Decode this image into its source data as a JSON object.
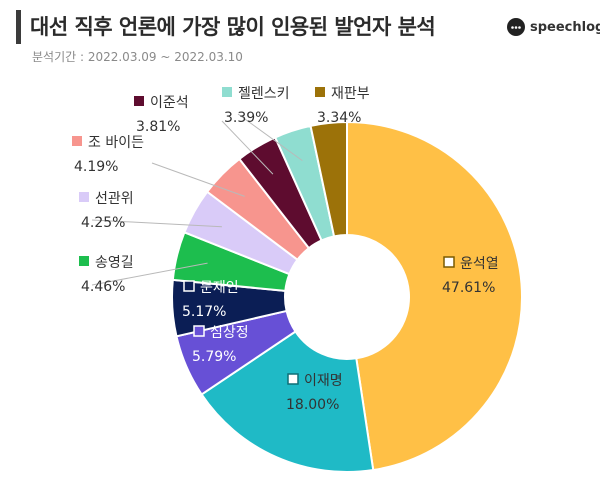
{
  "header": {
    "title": "대선 직후 언론에 가장 많이 인용된 발언자 분석",
    "period": "분석기간 : 2022.03.09 ~ 2022.03.10",
    "brand": "speechlog"
  },
  "chart_data": {
    "type": "pie",
    "donut": true,
    "slices": [
      {
        "name": "윤석열",
        "value": 47.61,
        "label": "47.61%",
        "color": "#FFC046"
      },
      {
        "name": "이재명",
        "value": 18.0,
        "label": "18.00%",
        "color": "#1FBAC6"
      },
      {
        "name": "심상정",
        "value": 5.79,
        "label": "5.79%",
        "color": "#6750D6"
      },
      {
        "name": "문재인",
        "value": 5.17,
        "label": "5.17%",
        "color": "#0B1E55"
      },
      {
        "name": "송영길",
        "value": 4.46,
        "label": "4.46%",
        "color": "#1DBE4E"
      },
      {
        "name": "선관위",
        "value": 4.25,
        "label": "4.25%",
        "color": "#D9CBF8"
      },
      {
        "name": "조 바이든",
        "value": 4.19,
        "label": "4.19%",
        "color": "#F7958E"
      },
      {
        "name": "이준석",
        "value": 3.81,
        "label": "3.81%",
        "color": "#5E0C2F"
      },
      {
        "name": "젤렌스키",
        "value": 3.39,
        "label": "3.39%",
        "color": "#8FDDD0"
      },
      {
        "name": "재판부",
        "value": 3.34,
        "label": "3.34%",
        "color": "#9C7209"
      }
    ]
  }
}
